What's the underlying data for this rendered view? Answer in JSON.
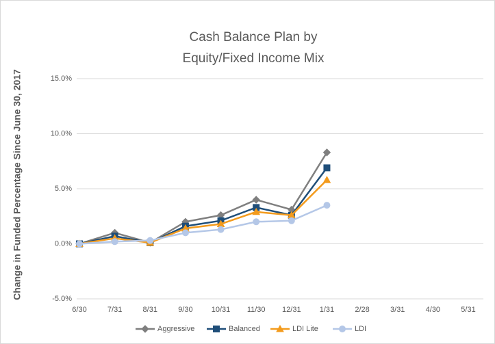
{
  "chart_data": {
    "type": "line",
    "title": [
      "Cash Balance Plan by",
      "Equity/Fixed Income Mix"
    ],
    "y_label": "Change in Funded Percentage Since June 30, 2017",
    "categories": [
      "6/30",
      "7/31",
      "8/31",
      "9/30",
      "10/31",
      "11/30",
      "12/31",
      "1/31",
      "2/28",
      "3/31",
      "4/30",
      "5/31"
    ],
    "series": [
      {
        "name": "Aggressive",
        "color": "#7f7f7f",
        "marker": "diamond",
        "values": [
          0,
          1.0,
          0.1,
          2.0,
          2.6,
          4.0,
          3.1,
          8.3,
          null,
          null,
          null,
          null
        ]
      },
      {
        "name": "Balanced",
        "color": "#1f4e79",
        "marker": "square",
        "values": [
          0,
          0.7,
          0.1,
          1.6,
          2.1,
          3.3,
          2.6,
          6.9,
          null,
          null,
          null,
          null
        ]
      },
      {
        "name": "LDI Lite",
        "color": "#f39b1d",
        "marker": "triangle",
        "values": [
          0,
          0.5,
          0.1,
          1.4,
          1.8,
          2.9,
          2.6,
          5.8,
          null,
          null,
          null,
          null
        ]
      },
      {
        "name": "LDI",
        "color": "#b4c7e7",
        "marker": "circle",
        "values": [
          0,
          0.2,
          0.3,
          1.0,
          1.3,
          2.0,
          2.1,
          3.5,
          null,
          null,
          null,
          null
        ]
      }
    ],
    "ylim": [
      -5,
      15
    ],
    "yticks": [
      {
        "value": -5,
        "label": "-5.0%"
      },
      {
        "value": 0,
        "label": "0.0%"
      },
      {
        "value": 5,
        "label": "5.0%"
      },
      {
        "value": 10,
        "label": "10.0%"
      },
      {
        "value": 15,
        "label": "15.0%"
      }
    ],
    "grid": true,
    "legend": "bottom"
  }
}
